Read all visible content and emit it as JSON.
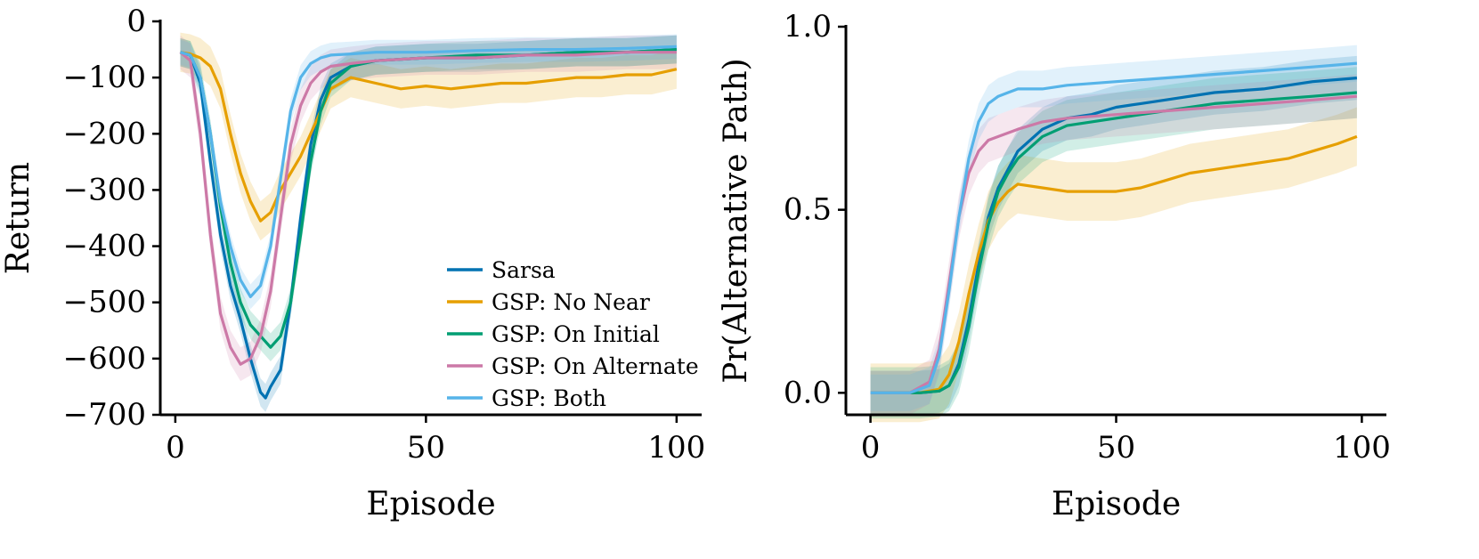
{
  "chart_data": [
    {
      "type": "line",
      "title": "",
      "xlabel": "Episode",
      "ylabel": "Return",
      "xlim": [
        -3,
        105
      ],
      "ylim": [
        -700,
        0
      ],
      "xticks": [
        {
          "v": 0,
          "label": "0"
        },
        {
          "v": 50,
          "label": "50"
        },
        {
          "v": 100,
          "label": "100"
        }
      ],
      "yticks": [
        {
          "v": 0,
          "label": "0"
        },
        {
          "v": -100,
          "label": "−100"
        },
        {
          "v": -200,
          "label": "−200"
        },
        {
          "v": -300,
          "label": "−300"
        },
        {
          "v": -400,
          "label": "−400"
        },
        {
          "v": -500,
          "label": "−500"
        },
        {
          "v": -600,
          "label": "−600"
        },
        {
          "v": -700,
          "label": "−700"
        }
      ],
      "legend": "lower-right",
      "series": [
        {
          "name": "Sarsa",
          "color": "#0072B2",
          "points": [
            [
              1,
              -55
            ],
            [
              3,
              -60
            ],
            [
              5,
              -110
            ],
            [
              7,
              -250
            ],
            [
              9,
              -380
            ],
            [
              11,
              -470
            ],
            [
              13,
              -530
            ],
            [
              15,
              -600
            ],
            [
              17,
              -660
            ],
            [
              18,
              -670
            ],
            [
              19,
              -650
            ],
            [
              21,
              -620
            ],
            [
              23,
              -500
            ],
            [
              25,
              -350
            ],
            [
              27,
              -220
            ],
            [
              29,
              -140
            ],
            [
              31,
              -100
            ],
            [
              35,
              -80
            ],
            [
              40,
              -70
            ],
            [
              50,
              -65
            ],
            [
              60,
              -65
            ],
            [
              70,
              -60
            ],
            [
              80,
              -55
            ],
            [
              90,
              -55
            ],
            [
              100,
              -50
            ]
          ],
          "band": 25
        },
        {
          "name": "GSP: No Near",
          "color": "#E69F00",
          "points": [
            [
              1,
              -55
            ],
            [
              3,
              -58
            ],
            [
              5,
              -65
            ],
            [
              7,
              -80
            ],
            [
              9,
              -120
            ],
            [
              11,
              -200
            ],
            [
              13,
              -270
            ],
            [
              15,
              -320
            ],
            [
              17,
              -355
            ],
            [
              19,
              -340
            ],
            [
              21,
              -300
            ],
            [
              23,
              -270
            ],
            [
              25,
              -240
            ],
            [
              27,
              -200
            ],
            [
              29,
              -160
            ],
            [
              31,
              -120
            ],
            [
              35,
              -100
            ],
            [
              40,
              -110
            ],
            [
              45,
              -120
            ],
            [
              50,
              -115
            ],
            [
              55,
              -120
            ],
            [
              60,
              -115
            ],
            [
              65,
              -110
            ],
            [
              70,
              -110
            ],
            [
              75,
              -105
            ],
            [
              80,
              -100
            ],
            [
              85,
              -100
            ],
            [
              90,
              -95
            ],
            [
              95,
              -95
            ],
            [
              100,
              -85
            ]
          ],
          "band": 35
        },
        {
          "name": "GSP: On Initial",
          "color": "#009E73",
          "points": [
            [
              1,
              -55
            ],
            [
              3,
              -60
            ],
            [
              5,
              -100
            ],
            [
              7,
              -200
            ],
            [
              9,
              -330
            ],
            [
              11,
              -430
            ],
            [
              13,
              -500
            ],
            [
              15,
              -540
            ],
            [
              17,
              -560
            ],
            [
              19,
              -580
            ],
            [
              21,
              -560
            ],
            [
              23,
              -500
            ],
            [
              25,
              -380
            ],
            [
              27,
              -250
            ],
            [
              29,
              -160
            ],
            [
              31,
              -110
            ],
            [
              35,
              -80
            ],
            [
              40,
              -70
            ],
            [
              50,
              -65
            ],
            [
              60,
              -60
            ],
            [
              70,
              -60
            ],
            [
              80,
              -55
            ],
            [
              90,
              -55
            ],
            [
              100,
              -50
            ]
          ],
          "band": 25
        },
        {
          "name": "GSP: On Alternate",
          "color": "#CC79A7",
          "points": [
            [
              1,
              -55
            ],
            [
              3,
              -70
            ],
            [
              5,
              -200
            ],
            [
              7,
              -380
            ],
            [
              9,
              -520
            ],
            [
              11,
              -580
            ],
            [
              13,
              -610
            ],
            [
              15,
              -600
            ],
            [
              17,
              -560
            ],
            [
              19,
              -480
            ],
            [
              21,
              -350
            ],
            [
              23,
              -220
            ],
            [
              25,
              -150
            ],
            [
              27,
              -110
            ],
            [
              29,
              -90
            ],
            [
              31,
              -80
            ],
            [
              35,
              -75
            ],
            [
              40,
              -70
            ],
            [
              50,
              -65
            ],
            [
              60,
              -65
            ],
            [
              70,
              -60
            ],
            [
              80,
              -60
            ],
            [
              90,
              -55
            ],
            [
              100,
              -55
            ]
          ],
          "band": 30
        },
        {
          "name": "GSP: Both",
          "color": "#56B4E9",
          "points": [
            [
              1,
              -55
            ],
            [
              3,
              -60
            ],
            [
              5,
              -100
            ],
            [
              7,
              -200
            ],
            [
              9,
              -320
            ],
            [
              11,
              -400
            ],
            [
              13,
              -460
            ],
            [
              15,
              -490
            ],
            [
              17,
              -470
            ],
            [
              19,
              -400
            ],
            [
              21,
              -280
            ],
            [
              23,
              -160
            ],
            [
              25,
              -100
            ],
            [
              27,
              -75
            ],
            [
              29,
              -65
            ],
            [
              31,
              -60
            ],
            [
              35,
              -58
            ],
            [
              40,
              -55
            ],
            [
              50,
              -55
            ],
            [
              60,
              -52
            ],
            [
              70,
              -50
            ],
            [
              80,
              -50
            ],
            [
              90,
              -48
            ],
            [
              100,
              -45
            ]
          ],
          "band": 22
        }
      ]
    },
    {
      "type": "line",
      "title": "",
      "xlabel": "Episode",
      "ylabel": "Pr(Alternative Path)",
      "xlim": [
        -5,
        105
      ],
      "ylim": [
        -0.06,
        1.0
      ],
      "xticks": [
        {
          "v": 0,
          "label": "0"
        },
        {
          "v": 50,
          "label": "50"
        },
        {
          "v": 100,
          "label": "100"
        }
      ],
      "yticks": [
        {
          "v": 0.0,
          "label": "0.0"
        },
        {
          "v": 0.5,
          "label": "0.5"
        },
        {
          "v": 1.0,
          "label": "1.0"
        }
      ],
      "series": [
        {
          "name": "Sarsa",
          "color": "#0072B2",
          "points": [
            [
              0,
              0
            ],
            [
              10,
              0
            ],
            [
              14,
              0.005
            ],
            [
              16,
              0.02
            ],
            [
              18,
              0.08
            ],
            [
              20,
              0.2
            ],
            [
              22,
              0.35
            ],
            [
              24,
              0.48
            ],
            [
              26,
              0.56
            ],
            [
              28,
              0.61
            ],
            [
              30,
              0.66
            ],
            [
              35,
              0.72
            ],
            [
              40,
              0.75
            ],
            [
              45,
              0.76
            ],
            [
              50,
              0.78
            ],
            [
              55,
              0.79
            ],
            [
              60,
              0.8
            ],
            [
              70,
              0.82
            ],
            [
              80,
              0.83
            ],
            [
              90,
              0.85
            ],
            [
              99,
              0.86
            ]
          ],
          "band": 0.06
        },
        {
          "name": "GSP: No Near",
          "color": "#E69F00",
          "points": [
            [
              0,
              0
            ],
            [
              10,
              0
            ],
            [
              14,
              0.01
            ],
            [
              16,
              0.05
            ],
            [
              18,
              0.14
            ],
            [
              20,
              0.27
            ],
            [
              22,
              0.38
            ],
            [
              24,
              0.47
            ],
            [
              26,
              0.52
            ],
            [
              28,
              0.55
            ],
            [
              30,
              0.57
            ],
            [
              35,
              0.56
            ],
            [
              40,
              0.55
            ],
            [
              45,
              0.55
            ],
            [
              50,
              0.55
            ],
            [
              55,
              0.56
            ],
            [
              60,
              0.58
            ],
            [
              65,
              0.6
            ],
            [
              70,
              0.61
            ],
            [
              75,
              0.62
            ],
            [
              80,
              0.63
            ],
            [
              85,
              0.64
            ],
            [
              90,
              0.66
            ],
            [
              95,
              0.68
            ],
            [
              99,
              0.7
            ]
          ],
          "band": 0.08
        },
        {
          "name": "GSP: On Initial",
          "color": "#009E73",
          "points": [
            [
              0,
              0
            ],
            [
              10,
              0
            ],
            [
              14,
              0.005
            ],
            [
              16,
              0.02
            ],
            [
              18,
              0.07
            ],
            [
              20,
              0.18
            ],
            [
              22,
              0.33
            ],
            [
              24,
              0.46
            ],
            [
              26,
              0.55
            ],
            [
              28,
              0.6
            ],
            [
              30,
              0.64
            ],
            [
              35,
              0.7
            ],
            [
              40,
              0.73
            ],
            [
              45,
              0.74
            ],
            [
              50,
              0.75
            ],
            [
              55,
              0.76
            ],
            [
              60,
              0.77
            ],
            [
              70,
              0.79
            ],
            [
              80,
              0.8
            ],
            [
              90,
              0.81
            ],
            [
              99,
              0.82
            ]
          ],
          "band": 0.07
        },
        {
          "name": "GSP: On Alternate",
          "color": "#CC79A7",
          "points": [
            [
              0,
              0
            ],
            [
              8,
              0
            ],
            [
              12,
              0.03
            ],
            [
              14,
              0.12
            ],
            [
              16,
              0.3
            ],
            [
              18,
              0.48
            ],
            [
              20,
              0.6
            ],
            [
              22,
              0.66
            ],
            [
              24,
              0.69
            ],
            [
              26,
              0.7
            ],
            [
              30,
              0.72
            ],
            [
              35,
              0.74
            ],
            [
              40,
              0.75
            ],
            [
              50,
              0.76
            ],
            [
              60,
              0.77
            ],
            [
              70,
              0.78
            ],
            [
              80,
              0.79
            ],
            [
              90,
              0.8
            ],
            [
              99,
              0.81
            ]
          ],
          "band": 0.06
        },
        {
          "name": "GSP: Both",
          "color": "#56B4E9",
          "points": [
            [
              0,
              0
            ],
            [
              8,
              0
            ],
            [
              12,
              0.02
            ],
            [
              14,
              0.1
            ],
            [
              16,
              0.28
            ],
            [
              18,
              0.48
            ],
            [
              20,
              0.64
            ],
            [
              22,
              0.74
            ],
            [
              24,
              0.79
            ],
            [
              26,
              0.81
            ],
            [
              28,
              0.82
            ],
            [
              30,
              0.83
            ],
            [
              35,
              0.83
            ],
            [
              40,
              0.84
            ],
            [
              50,
              0.85
            ],
            [
              60,
              0.86
            ],
            [
              70,
              0.87
            ],
            [
              80,
              0.88
            ],
            [
              90,
              0.89
            ],
            [
              99,
              0.9
            ]
          ],
          "band": 0.05
        }
      ]
    }
  ]
}
